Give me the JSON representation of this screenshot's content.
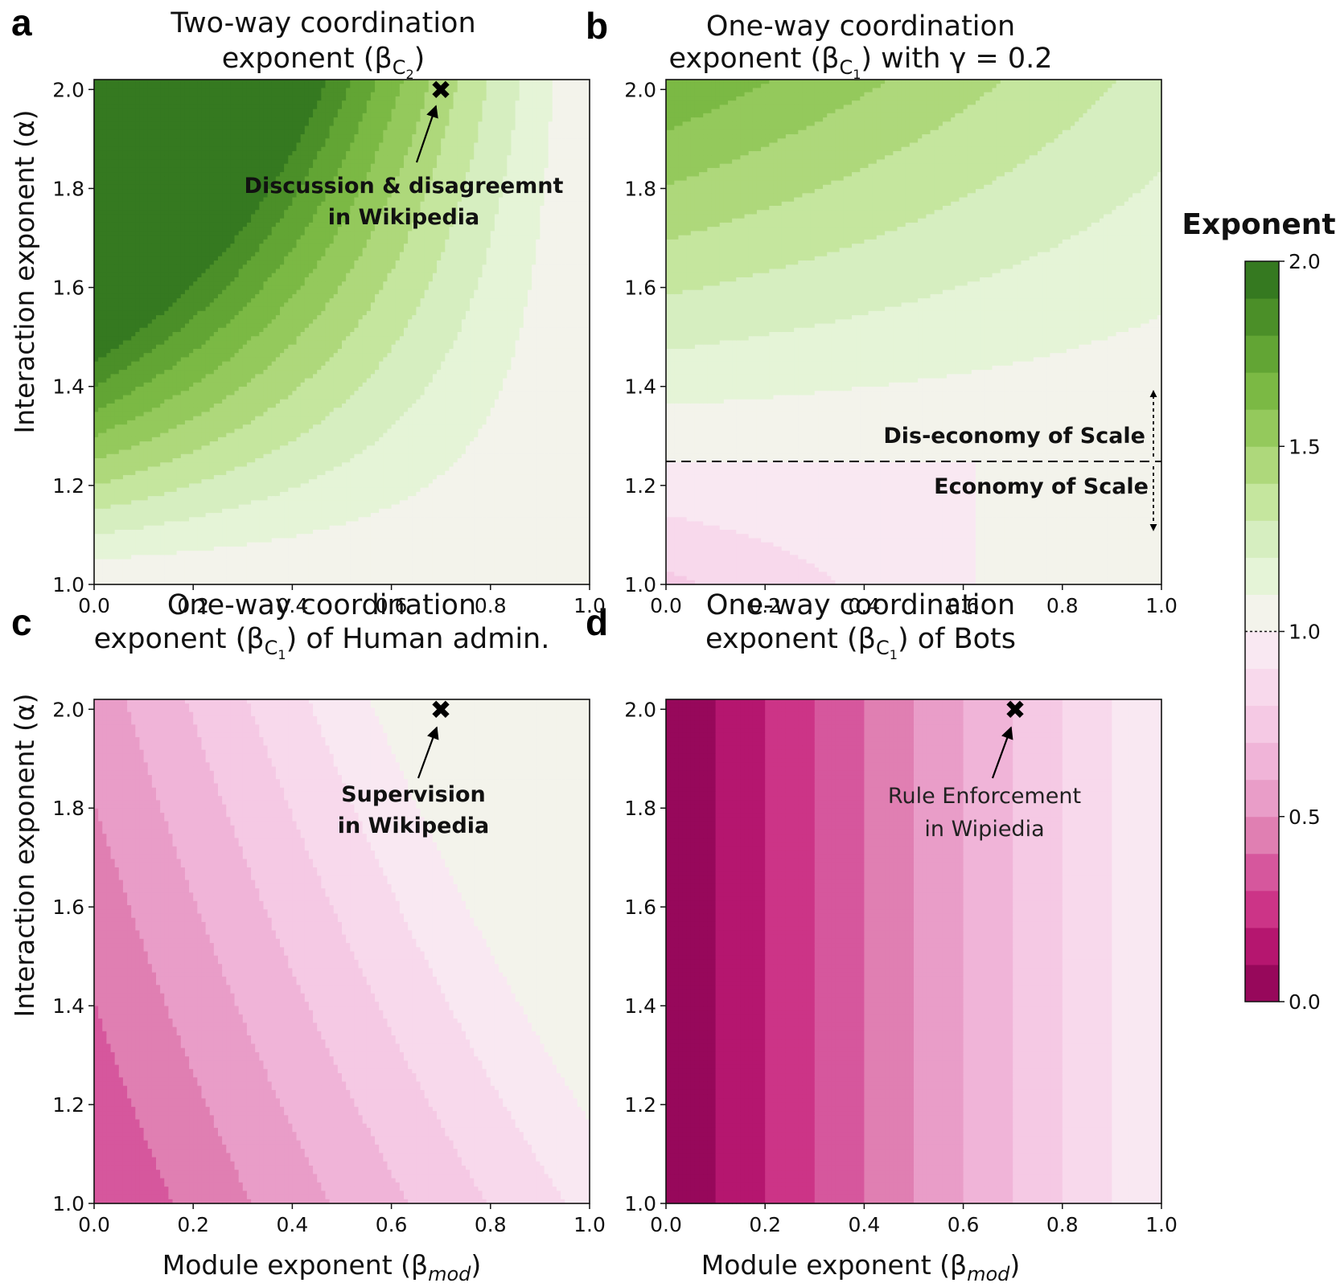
{
  "colors": {
    "axis": "#111111",
    "marker": "#000000"
  },
  "colorbar": {
    "title": "Exponent",
    "ticks": [
      "0.0",
      "0.5",
      "1.0",
      "1.5",
      "2.0"
    ],
    "tick_values": [
      0,
      0.5,
      1.0,
      1.5,
      2.0
    ],
    "levels": [
      0,
      0.1,
      0.2,
      0.3,
      0.4,
      0.5,
      0.6,
      0.7,
      0.8,
      0.9,
      1.0,
      1.1,
      1.2,
      1.3,
      1.4,
      1.5,
      1.6,
      1.7,
      1.8,
      1.9,
      2.0
    ],
    "colors": [
      "#97085b",
      "#b5166f",
      "#cc3487",
      "#d6579d",
      "#e07fb2",
      "#e99dc8",
      "#f0b4d8",
      "#f5c9e4",
      "#f8d9ec",
      "#f9e8f2",
      "#f3f3eb",
      "#e5f4d7",
      "#d6eec0",
      "#c5e69e",
      "#aed87b",
      "#94c95c",
      "#7bb944",
      "#62a534",
      "#4b8f28",
      "#357920"
    ]
  },
  "axis": {
    "x_ticks": [
      "0.0",
      "0.2",
      "0.4",
      "0.6",
      "0.8",
      "1.0"
    ],
    "y_ticks": [
      "1.0",
      "1.2",
      "1.4",
      "1.6",
      "1.8",
      "2.0"
    ],
    "xlabel": "Module exponent (β",
    "xlabel_sub": "mod",
    "xlabel_end": ")",
    "ylabel": "Interaction exponent (α)"
  },
  "chart_data": [
    {
      "panel": "a",
      "type": "heatmap",
      "title_line1": "Two-way coordination",
      "title_line2_pre": "exponent (β",
      "title_sub": "C",
      "title_subsub": "2",
      "title_line2_post": ")",
      "formula": "beta_C2 = 2*(1-x)*(y-1) + 1 (filled contours)",
      "xlim": [
        0,
        1
      ],
      "ylim": [
        1,
        2.02
      ],
      "xlabel": "",
      "ylabel": "Interaction exponent (α)",
      "marker": {
        "x": 0.7,
        "y": 2.0,
        "symbol": "✖"
      },
      "annotation": [
        "Discussion & disagreemnt",
        "in Wikipedia"
      ]
    },
    {
      "panel": "b",
      "type": "heatmap",
      "title_line1": "One-way coordination",
      "title_line2_pre": "exponent (β",
      "title_sub": "C",
      "title_subsub": "1",
      "title_line2_post": ") with γ = 0.2",
      "formula": "beta_C1 = 1 + 0.2*(y-1.25)*4 - 0.x dependence (filled contours)",
      "xlim": [
        0,
        1
      ],
      "ylim": [
        1,
        2.02
      ],
      "xlabel": "",
      "ylabel": "",
      "threshold": 1.25,
      "annotation_upper": "Dis-economy of Scale",
      "annotation_lower": "Economy of Scale"
    },
    {
      "panel": "c",
      "type": "heatmap",
      "title_line1": "One-way coordination",
      "title_line2_pre": "exponent (β",
      "title_sub": "C",
      "title_subsub": "1",
      "title_line2_post": ") of Human admin.",
      "xlim": [
        0,
        1
      ],
      "ylim": [
        1,
        2.02
      ],
      "xlabel": "Module exponent (βmod)",
      "ylabel": "Interaction exponent (α)",
      "marker": {
        "x": 0.7,
        "y": 2.0,
        "symbol": "✖"
      },
      "annotation": [
        "Supervision",
        "in Wikipedia"
      ]
    },
    {
      "panel": "d",
      "type": "heatmap",
      "title_line1": "One-way coordination",
      "title_line2_pre": "exponent (β",
      "title_sub": "C",
      "title_subsub": "1",
      "title_line2_post": ") of Bots",
      "formula": "beta_C1 = x (vertical bands, independent of α)",
      "xlim": [
        0,
        1
      ],
      "ylim": [
        1,
        2.02
      ],
      "xlabel": "Module exponent (βmod)",
      "ylabel": "",
      "marker": {
        "x": 0.7,
        "y": 2.0,
        "symbol": "✖"
      },
      "annotation": [
        "Rule Enforcement",
        "in Wipiedia"
      ]
    }
  ]
}
